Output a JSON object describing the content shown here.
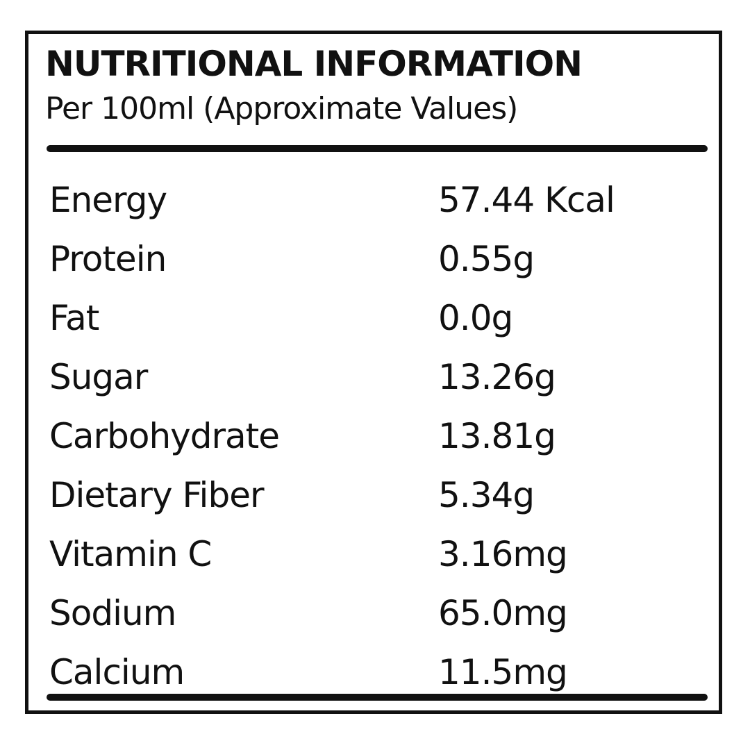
{
  "header": {
    "title": "NUTRITIONAL INFORMATION",
    "subtitle": "Per 100ml (Approximate Values)"
  },
  "table": {
    "rows": [
      [
        "Energy",
        "57.44 Kcal"
      ],
      [
        "Protein",
        "0.55g"
      ],
      [
        "Fat",
        "0.0g"
      ],
      [
        "Sugar",
        "13.26g"
      ],
      [
        "Carbohydrate",
        "13.81g"
      ],
      [
        "Dietary Fiber",
        "5.34g"
      ],
      [
        "Vitamin C",
        "3.16mg"
      ],
      [
        "Sodium",
        "65.0mg"
      ],
      [
        "Calcium",
        "11.5mg"
      ]
    ]
  }
}
